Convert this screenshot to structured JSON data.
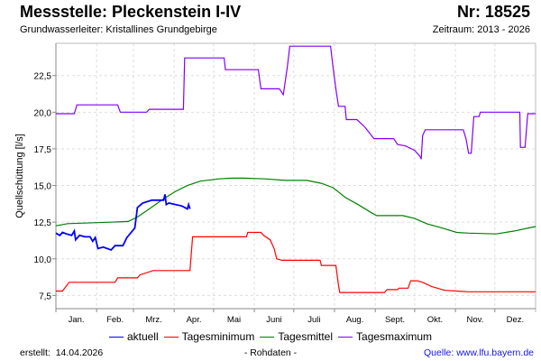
{
  "header": {
    "title": "Messstelle: Pleckenstein I-IV",
    "number": "Nr: 18525",
    "subtitle": "Grundwasserleiter: Kristallines Grundgebirge",
    "period": "Zeitraum: 2013 - 2026"
  },
  "footer": {
    "created_label": "erstellt:",
    "created_date": "14.04.2026",
    "note": "- Rohdaten -",
    "source": "Quelle: www.lfu.bayern.de"
  },
  "chart_data": {
    "type": "line",
    "title": "Messstelle: Pleckenstein I-IV",
    "xlabel": "",
    "ylabel": "Quellschüttung [l/s]",
    "ylim": [
      6.6,
      24.7
    ],
    "xlim": [
      0,
      365
    ],
    "grid": true,
    "legend_position": "bottom",
    "yticks": [
      7.5,
      10.0,
      12.5,
      15.0,
      17.5,
      20.0,
      22.5
    ],
    "ytick_labels": [
      "7,5",
      "10,0",
      "12,5",
      "15,0",
      "17,5",
      "20,0",
      "22,5"
    ],
    "months": [
      "Jan.",
      "Feb.",
      "Mrz.",
      "Apr.",
      "Mai",
      "Juni",
      "Juli",
      "Aug.",
      "Sept.",
      "Okt.",
      "Nov.",
      "Dez."
    ],
    "series": [
      {
        "name": "aktuell",
        "color": "#0000ff",
        "points": [
          [
            0,
            11.75
          ],
          [
            3,
            11.6
          ],
          [
            5,
            11.8
          ],
          [
            8,
            11.7
          ],
          [
            12,
            11.6
          ],
          [
            14,
            11.9
          ],
          [
            15,
            11.3
          ],
          [
            18,
            11.6
          ],
          [
            22,
            11.5
          ],
          [
            26,
            11.5
          ],
          [
            28,
            11.2
          ],
          [
            30,
            11.45
          ],
          [
            32,
            10.7
          ],
          [
            36,
            10.8
          ],
          [
            42,
            10.6
          ],
          [
            45,
            10.9
          ],
          [
            51,
            10.9
          ],
          [
            54,
            11.45
          ],
          [
            60,
            12.1
          ],
          [
            62,
            13.5
          ],
          [
            66,
            13.8
          ],
          [
            73,
            14.0
          ],
          [
            82,
            14.0
          ],
          [
            83,
            14.4
          ],
          [
            84,
            13.7
          ],
          [
            86,
            13.8
          ],
          [
            96,
            13.6
          ],
          [
            100,
            13.4
          ],
          [
            101,
            13.7
          ],
          [
            102,
            13.4
          ]
        ]
      },
      {
        "name": "Tagesminimum",
        "color": "#ff0000",
        "points": [
          [
            0,
            7.8
          ],
          [
            5,
            7.8
          ],
          [
            10,
            8.4
          ],
          [
            45,
            8.4
          ],
          [
            47,
            8.7
          ],
          [
            62,
            8.7
          ],
          [
            64,
            8.9
          ],
          [
            74,
            9.2
          ],
          [
            102,
            9.2
          ],
          [
            104,
            11.5
          ],
          [
            145,
            11.5
          ],
          [
            146,
            11.8
          ],
          [
            156,
            11.8
          ],
          [
            158,
            11.6
          ],
          [
            163,
            11.3
          ],
          [
            166,
            10.7
          ],
          [
            168,
            10.0
          ],
          [
            172,
            9.9
          ],
          [
            201,
            9.9
          ],
          [
            202,
            9.55
          ],
          [
            213,
            9.55
          ],
          [
            215,
            8.2
          ],
          [
            216,
            7.7
          ],
          [
            250,
            7.7
          ],
          [
            252,
            7.9
          ],
          [
            260,
            7.9
          ],
          [
            261,
            8.0
          ],
          [
            268,
            8.0
          ],
          [
            270,
            8.5
          ],
          [
            275,
            8.5
          ],
          [
            279,
            8.4
          ],
          [
            286,
            8.1
          ],
          [
            296,
            7.85
          ],
          [
            314,
            7.75
          ],
          [
            365,
            7.75
          ]
        ]
      },
      {
        "name": "Tagesmittel",
        "color": "#008000",
        "points": [
          [
            0,
            12.25
          ],
          [
            9,
            12.4
          ],
          [
            41,
            12.5
          ],
          [
            55,
            12.55
          ],
          [
            62,
            12.85
          ],
          [
            71,
            13.4
          ],
          [
            82,
            14.1
          ],
          [
            91,
            14.6
          ],
          [
            100,
            15.0
          ],
          [
            110,
            15.3
          ],
          [
            124,
            15.45
          ],
          [
            134,
            15.5
          ],
          [
            143,
            15.5
          ],
          [
            159,
            15.45
          ],
          [
            175,
            15.35
          ],
          [
            191,
            15.35
          ],
          [
            202,
            15.15
          ],
          [
            211,
            14.85
          ],
          [
            220,
            14.2
          ],
          [
            230,
            13.7
          ],
          [
            239,
            13.2
          ],
          [
            244,
            12.95
          ],
          [
            264,
            12.95
          ],
          [
            273,
            12.75
          ],
          [
            282,
            12.4
          ],
          [
            294,
            12.1
          ],
          [
            305,
            11.8
          ],
          [
            314,
            11.75
          ],
          [
            335,
            11.7
          ],
          [
            349,
            11.9
          ],
          [
            365,
            12.2
          ]
        ]
      },
      {
        "name": "Tagesmaximum",
        "color": "#8000ff",
        "points": [
          [
            0,
            19.9
          ],
          [
            14,
            19.9
          ],
          [
            16,
            20.5
          ],
          [
            47,
            20.5
          ],
          [
            49,
            20.0
          ],
          [
            69,
            20.0
          ],
          [
            71,
            20.2
          ],
          [
            97,
            20.2
          ],
          [
            98,
            23.7
          ],
          [
            128,
            23.7
          ],
          [
            129,
            22.9
          ],
          [
            154,
            22.9
          ],
          [
            156,
            21.6
          ],
          [
            170,
            21.6
          ],
          [
            173,
            21.2
          ],
          [
            176,
            23.0
          ],
          [
            178,
            24.5
          ],
          [
            209,
            24.5
          ],
          [
            211,
            23.0
          ],
          [
            213,
            21.6
          ],
          [
            215,
            20.4
          ],
          [
            220,
            20.4
          ],
          [
            221,
            19.5
          ],
          [
            229,
            19.5
          ],
          [
            235,
            19.0
          ],
          [
            242,
            18.2
          ],
          [
            257,
            18.2
          ],
          [
            260,
            17.8
          ],
          [
            266,
            17.7
          ],
          [
            273,
            17.4
          ],
          [
            277,
            17.0
          ],
          [
            278,
            16.8
          ],
          [
            279,
            18.4
          ],
          [
            281,
            18.8
          ],
          [
            310,
            18.8
          ],
          [
            312,
            18.2
          ],
          [
            314,
            17.2
          ],
          [
            316,
            17.2
          ],
          [
            318,
            19.7
          ],
          [
            322,
            19.7
          ],
          [
            323,
            20.0
          ],
          [
            353,
            20.0
          ],
          [
            353.5,
            17.6
          ],
          [
            357,
            17.6
          ],
          [
            359,
            19.9
          ],
          [
            365,
            19.9
          ]
        ]
      }
    ]
  }
}
